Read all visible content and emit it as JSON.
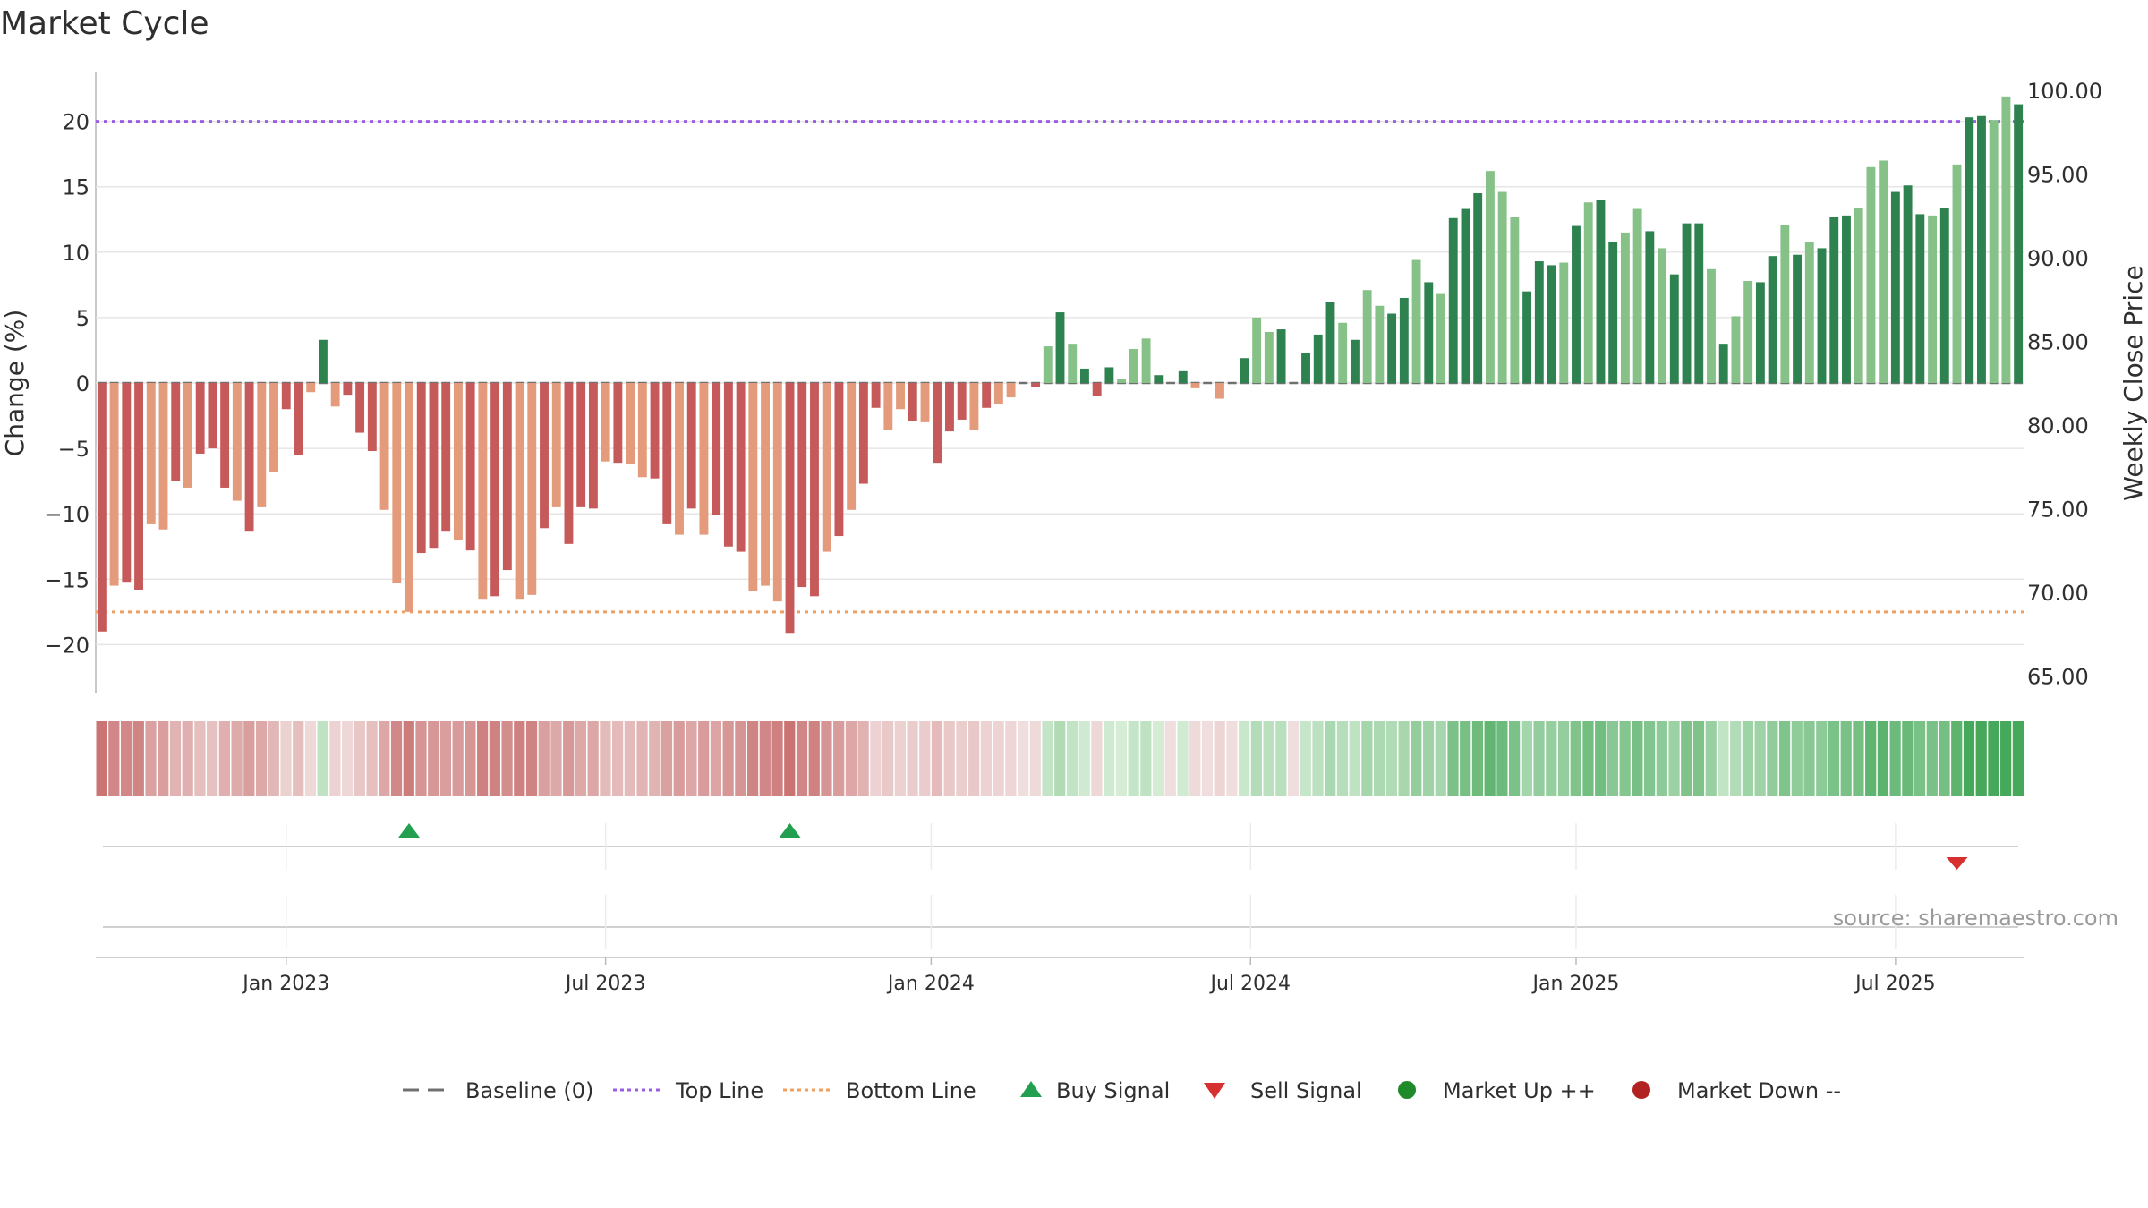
{
  "title": "Market Cycle",
  "source": "source: sharemaestro.com",
  "colors": {
    "down_strong": "#c65a5a",
    "down_light": "#e39b7b",
    "up_strong": "#2e8250",
    "up_light": "#86c187",
    "top_line": "#9b5de5",
    "bottom_line": "#f0a060",
    "buy": "#22a050",
    "sell": "#d63030",
    "market_up": "#1e8a2a",
    "market_down": "#b32222",
    "baseline": "#707070"
  },
  "legend": [
    {
      "label": "Baseline (0)",
      "icon": "dash-line-icon"
    },
    {
      "label": "Top Line",
      "icon": "dotted-purple-line-icon"
    },
    {
      "label": "Bottom Line",
      "icon": "dotted-orange-line-icon"
    },
    {
      "label": "Buy Signal",
      "icon": "triangle-up-icon"
    },
    {
      "label": "Sell Signal",
      "icon": "triangle-down-icon"
    },
    {
      "label": "Market Up ++",
      "icon": "green-dot-icon"
    },
    {
      "label": "Market Down --",
      "icon": "red-dot-icon"
    }
  ],
  "chart_data": {
    "type": "bar",
    "title": "Market Cycle",
    "ylabel": "Change (%)",
    "y2label": "Weekly Close Price",
    "ylim": [
      -24,
      24
    ],
    "y2lim": [
      63.5,
      101.5
    ],
    "yticks": [
      "20",
      "15",
      "10",
      "5",
      "0",
      "−5",
      "−10",
      "−15",
      "−20"
    ],
    "ytick_values": [
      20,
      15,
      10,
      5,
      0,
      -5,
      -10,
      -15,
      -20
    ],
    "y2ticks": [
      "100.00",
      "95.00",
      "90.00",
      "85.00",
      "80.00",
      "75.00",
      "70.00",
      "65.00"
    ],
    "y2tick_values": [
      100,
      95,
      90,
      85,
      80,
      75,
      70,
      65
    ],
    "date_ticks": [
      "Jan 2023",
      "Jul 2023",
      "Jan 2024",
      "Jul 2024",
      "Jan 2025",
      "Jul 2025"
    ],
    "date_tick_weeks": [
      15,
      41,
      67.5,
      93.5,
      120,
      146
    ],
    "top_line": 20,
    "bottom_line": -17.5,
    "grid": true,
    "legend_position": "bottom",
    "values": [
      -19,
      -15.5,
      -15.2,
      -15.8,
      -10.8,
      -11.2,
      -7.5,
      -8,
      -5.4,
      -5,
      -8,
      -9,
      -11.3,
      -9.5,
      -6.8,
      -2,
      -5.5,
      -0.7,
      3.3,
      -1.8,
      -0.9,
      -3.8,
      -5.2,
      -9.7,
      -15.3,
      -17.5,
      -13,
      -12.6,
      -11.3,
      -12,
      -12.8,
      -16.5,
      -16.3,
      -14.3,
      -16.5,
      -16.2,
      -11.1,
      -9.5,
      -12.3,
      -9.5,
      -9.6,
      -6,
      -6.1,
      -6.2,
      -7.2,
      -7.3,
      -10.8,
      -11.6,
      -9.6,
      -11.6,
      -10.1,
      -12.5,
      -12.9,
      -15.9,
      -15.5,
      -16.7,
      -19.1,
      -15.6,
      -16.3,
      -12.9,
      -11.7,
      -9.7,
      -7.7,
      -1.9,
      -3.6,
      -2,
      -2.9,
      -3,
      -6.1,
      -3.7,
      -2.8,
      -3.6,
      -1.9,
      -1.6,
      -1.1,
      0,
      -0.3,
      2.8,
      5.4,
      3,
      1.1,
      -1,
      1.2,
      0.3,
      2.6,
      3.4,
      0.6,
      0,
      0.9,
      -0.4,
      0,
      -1.2,
      0,
      1.9,
      5,
      3.9,
      4.1,
      0,
      2.3,
      3.7,
      6.2,
      4.6,
      3.3,
      7.1,
      5.9,
      5.3,
      6.5,
      9.4,
      7.7,
      6.8,
      12.6,
      13.3,
      14.5,
      16.2,
      14.6,
      12.7,
      7,
      9.3,
      9,
      9.2,
      12,
      13.8,
      14,
      10.8,
      11.5,
      13.3,
      11.6,
      10.3,
      8.3,
      12.2,
      12.2,
      8.7,
      3,
      5.1,
      7.8,
      7.7,
      9.7,
      12.1,
      9.8,
      10.8,
      10.3,
      12.7,
      12.8,
      13.4,
      16.5,
      17,
      14.6,
      15.1,
      12.9,
      12.8,
      13.4,
      16.7,
      20.3,
      20.4,
      20.1,
      21.9,
      21.3
    ],
    "buy_signal_weeks": [
      25,
      56
    ],
    "sell_signal_weeks": [
      151
    ]
  }
}
